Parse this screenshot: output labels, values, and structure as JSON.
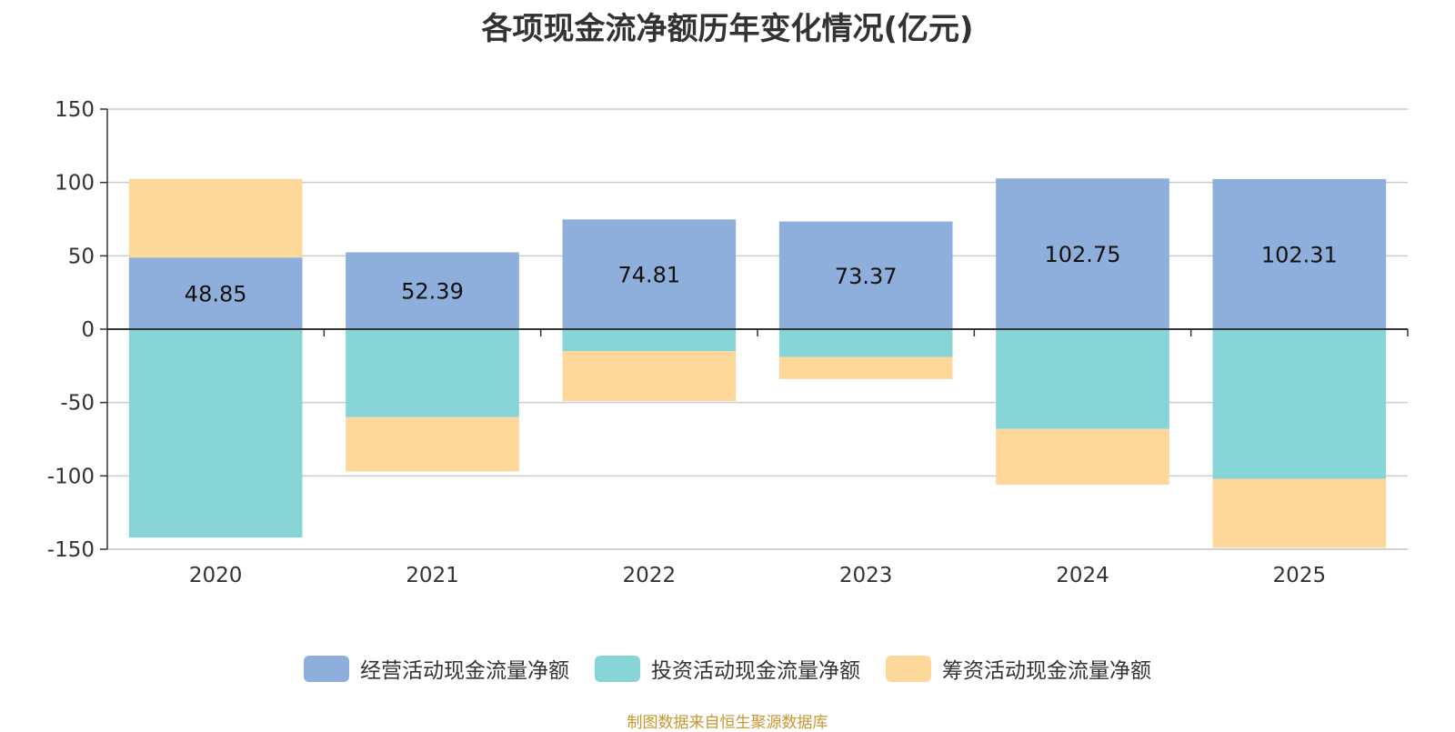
{
  "chart_data": {
    "type": "bar",
    "stacked": true,
    "title": "各项现金流净额历年变化情况(亿元)",
    "categories": [
      "2020",
      "2021",
      "2022",
      "2023",
      "2024",
      "2025"
    ],
    "series": [
      {
        "name": "经营活动现金流量净额",
        "color": "#8eaedb",
        "values": [
          48.85,
          52.39,
          74.81,
          73.37,
          102.75,
          102.31
        ],
        "labels": [
          "48.85",
          "52.39",
          "74.81",
          "73.37",
          "102.75",
          "102.31"
        ]
      },
      {
        "name": "投资活动现金流量净额",
        "color": "#88d5d8",
        "values": [
          -142,
          -60,
          -15,
          -19,
          -68,
          -102
        ]
      },
      {
        "name": "筹资活动现金流量净额",
        "color": "#fdd89a",
        "values": [
          53.5,
          -37,
          -34,
          -15,
          -38,
          -47
        ]
      }
    ],
    "y_ticks": [
      "150",
      "100",
      "50",
      "0",
      "-50",
      "-100",
      "-150"
    ],
    "ylim": [
      -150,
      150
    ],
    "grid": true,
    "legend_position": "bottom"
  },
  "source_note": "制图数据来自恒生聚源数据库"
}
